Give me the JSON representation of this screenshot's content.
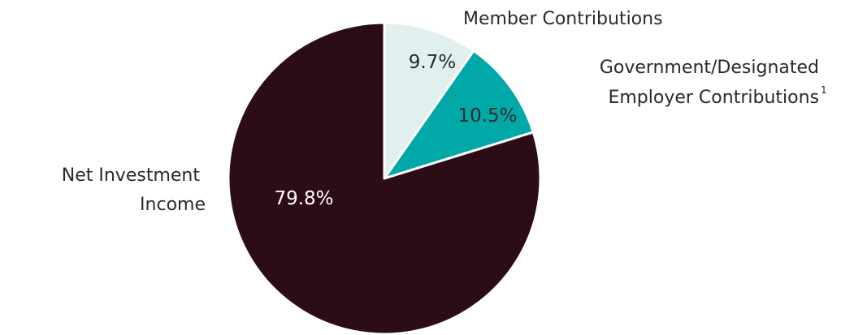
{
  "chart_data": {
    "type": "pie",
    "start_angle_deg": 0,
    "direction": "clockwise",
    "slices": [
      {
        "name": "Member Contributions",
        "label_lines": [
          "Member Contributions"
        ],
        "value": 9.7,
        "display": "9.7%",
        "color": "#dff0ef"
      },
      {
        "name": "Government/Designated Employer Contributions",
        "label_lines": [
          "Government/Designated",
          "Employer Contributions"
        ],
        "footnote": "1",
        "value": 10.5,
        "display": "10.5%",
        "color": "#00a9a8"
      },
      {
        "name": "Net Investment Income",
        "label_lines": [
          "Net Investment",
          "Income"
        ],
        "value": 79.8,
        "display": "79.8%",
        "color": "#2b0c17"
      }
    ]
  }
}
